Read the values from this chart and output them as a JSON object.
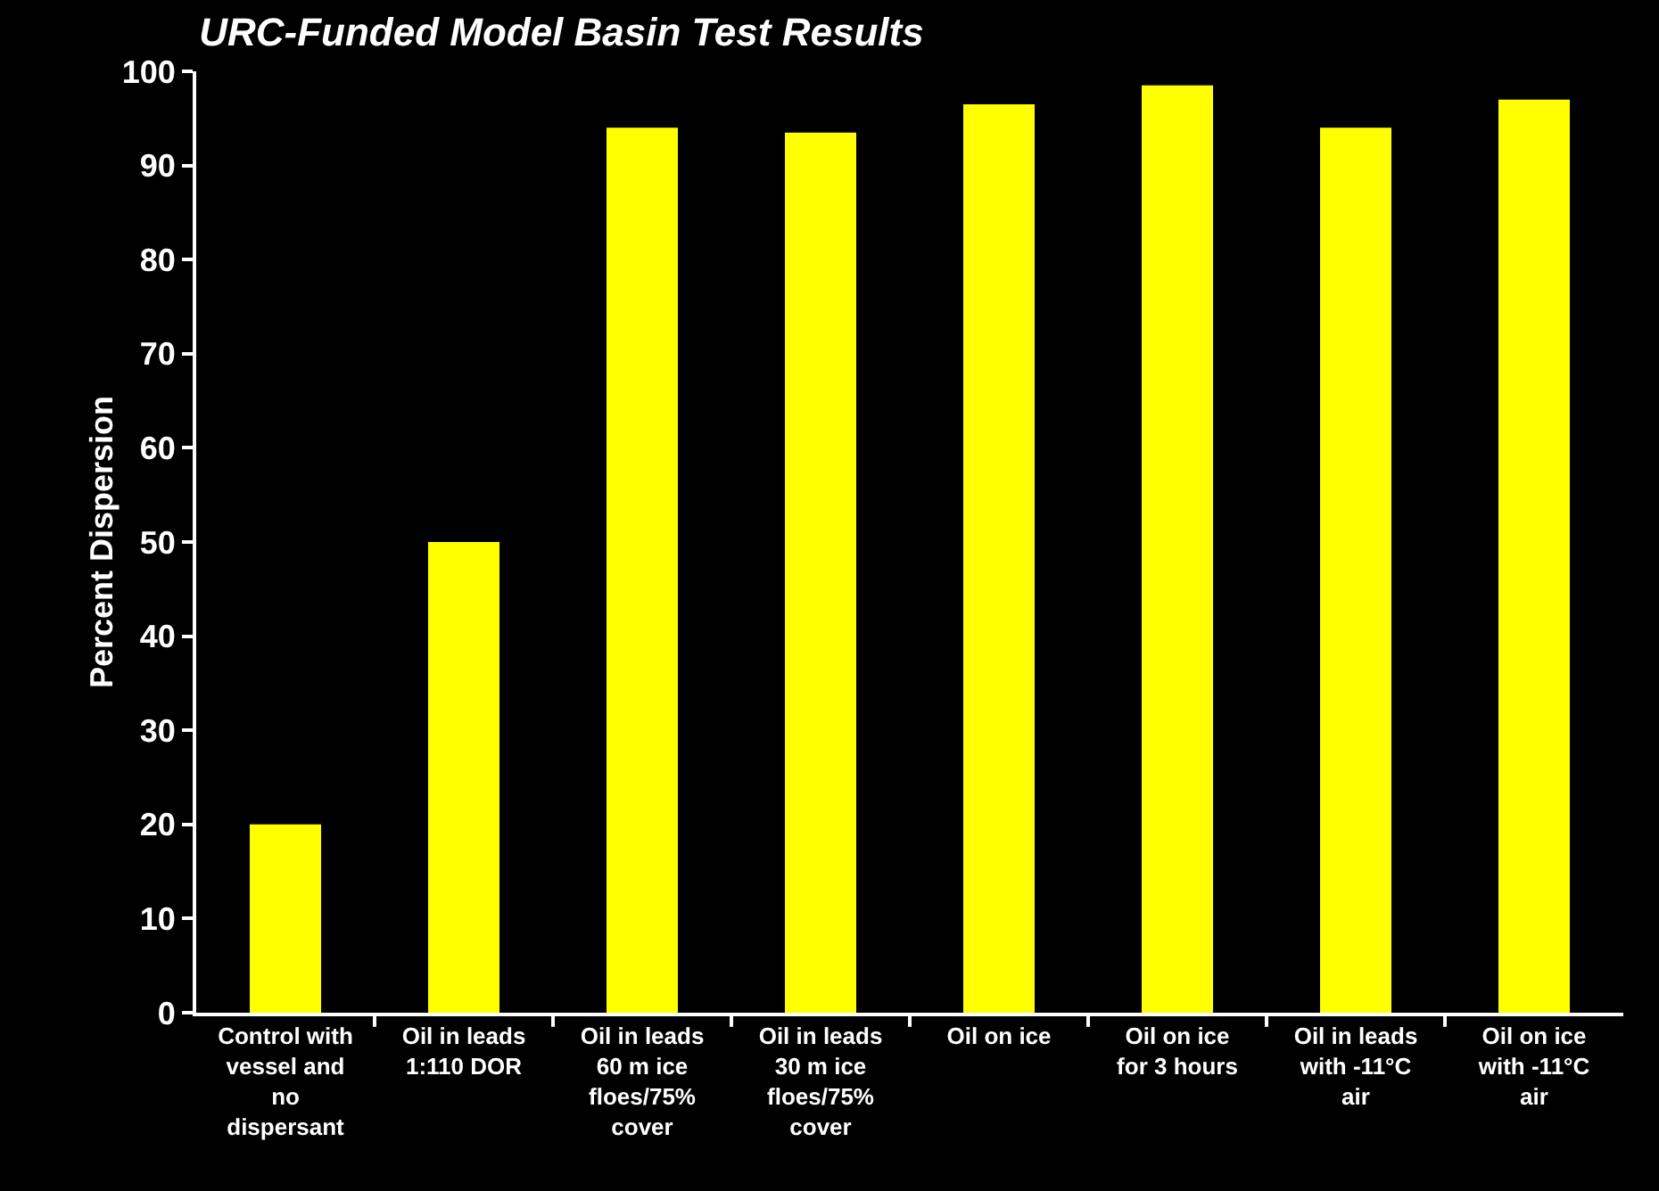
{
  "chart_data": {
    "type": "bar",
    "title": "URC-Funded Model Basin Test Results",
    "ylabel": "Percent Dispersion",
    "categories": [
      "Control with vessel and no dispersant",
      "Oil in leads 1:110 DOR",
      "Oil in leads 60 m ice floes/75% cover",
      "Oil in leads 30 m ice floes/75% cover",
      "Oil on ice",
      "Oil on ice for 3 hours",
      "Oil in leads with -11°C air",
      "Oil on ice with -11°C air"
    ],
    "values": [
      20,
      50,
      94,
      93.5,
      96.5,
      98.5,
      94,
      97
    ],
    "color": "#ffff00",
    "ylim": [
      0,
      100
    ],
    "yticks": [
      0,
      10,
      20,
      30,
      40,
      50,
      60,
      70,
      80,
      90,
      100
    ],
    "grid": false
  }
}
